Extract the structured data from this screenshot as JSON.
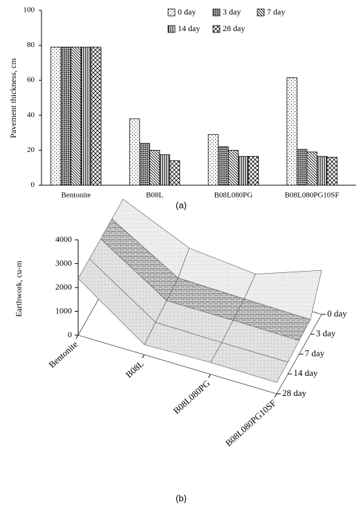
{
  "chart_data": [
    {
      "type": "bar",
      "ylabel": "Pavement thickness, cm",
      "caption": "(a)",
      "categories": [
        "Bentonite",
        "B08L",
        "B08L080PG",
        "B08L080PG10SF"
      ],
      "series": [
        {
          "name": "0 day",
          "pattern": "dots",
          "values": [
            79,
            38,
            29,
            61.5
          ]
        },
        {
          "name": "3 day",
          "pattern": "dense-grid",
          "values": [
            79,
            24,
            22,
            20.5
          ]
        },
        {
          "name": "7 day",
          "pattern": "diagonal",
          "values": [
            79,
            20,
            20,
            19
          ]
        },
        {
          "name": "14 day",
          "pattern": "vertical",
          "values": [
            79,
            17.5,
            16.5,
            16.5
          ]
        },
        {
          "name": "28 day",
          "pattern": "diamond",
          "values": [
            79,
            14,
            16.5,
            16
          ]
        }
      ],
      "ylim": [
        0,
        100
      ],
      "yticks": [
        0,
        20,
        40,
        60,
        80,
        100
      ],
      "legend": "top-right"
    },
    {
      "type": "surface",
      "ylabel": "Earthwork,  cu-m",
      "caption": "(b)",
      "categories": [
        "Bentonite",
        "B08L",
        "B08L080PG",
        "B08L080PG10SF"
      ],
      "series": [
        {
          "name": "0 day",
          "values": [
            2370,
            1140,
            870,
            1845
          ]
        },
        {
          "name": "3 day",
          "values": [
            2370,
            720,
            660,
            615
          ]
        },
        {
          "name": "7 day",
          "values": [
            2370,
            600,
            600,
            570
          ]
        },
        {
          "name": "14 day",
          "values": [
            2370,
            525,
            495,
            495
          ]
        },
        {
          "name": "28 day",
          "values": [
            2370,
            420,
            495,
            480
          ]
        }
      ],
      "ylim": [
        0,
        4000
      ],
      "yticks": [
        0,
        1000,
        2000,
        3000,
        4000
      ]
    }
  ]
}
